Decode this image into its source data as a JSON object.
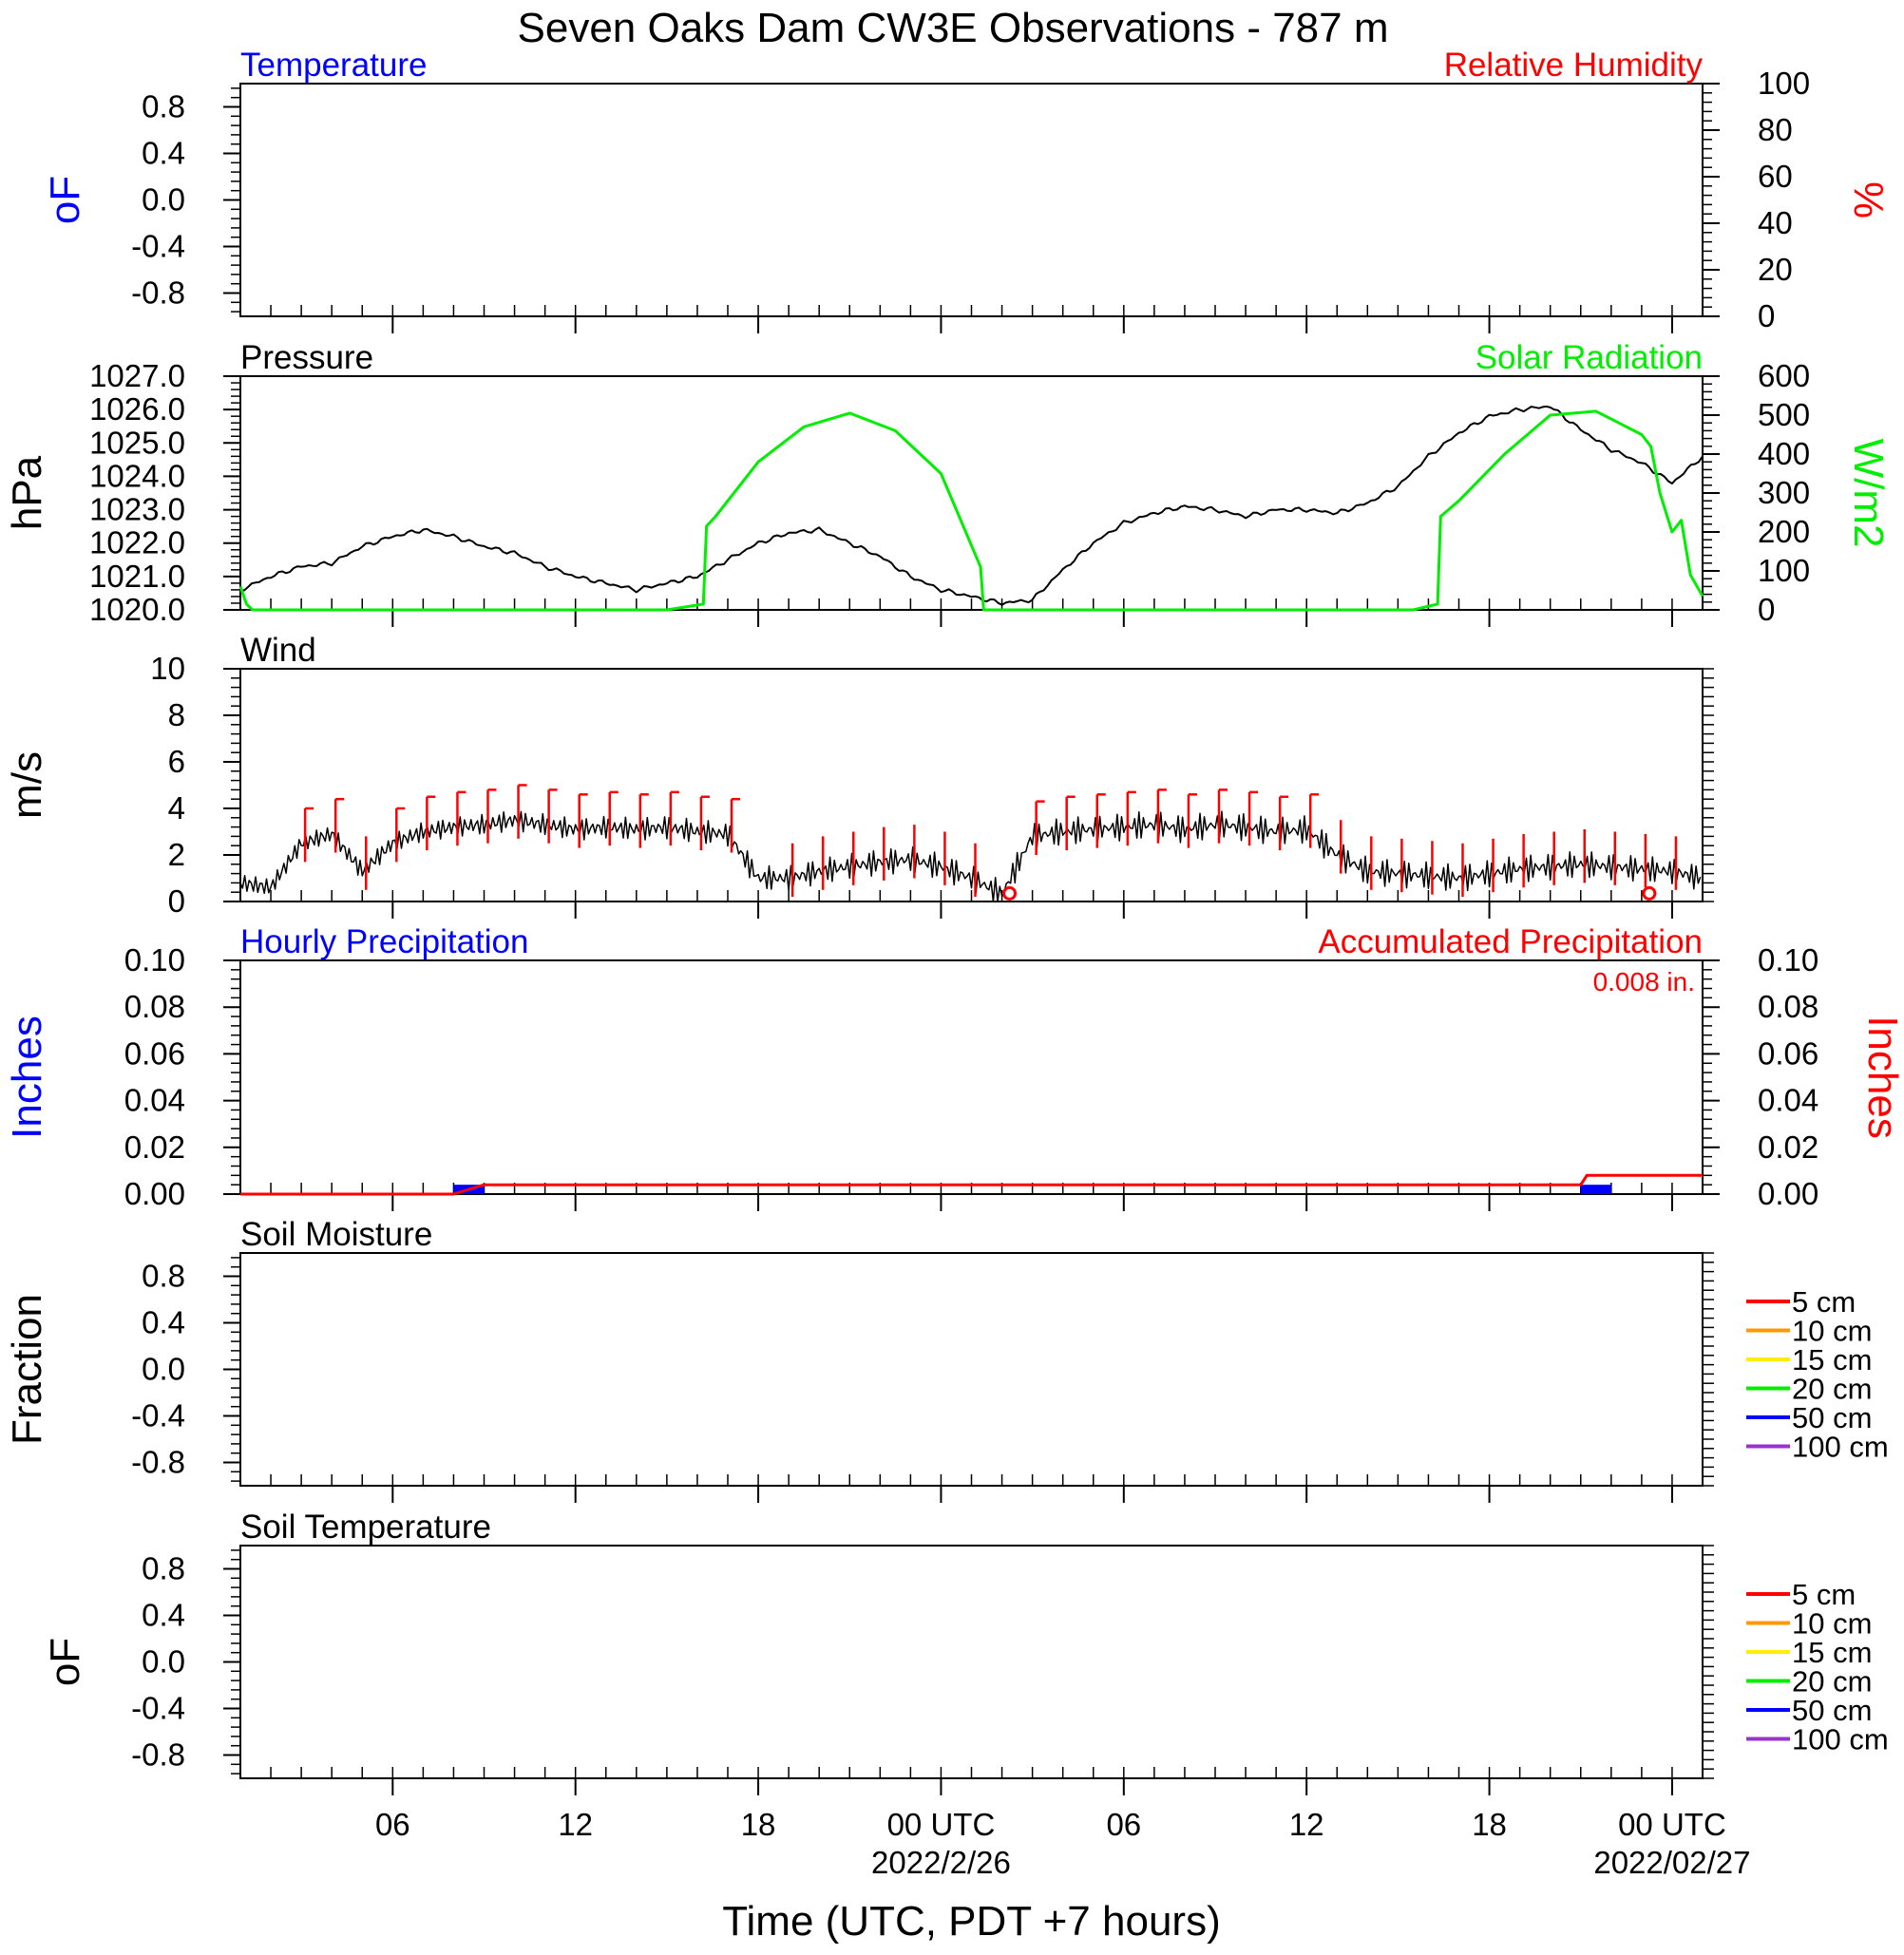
{
  "title": "Seven Oaks Dam CW3E Observations - 787 m",
  "colors": {
    "temperature": "#0000ff",
    "humidity": "#ff0000",
    "pressure": "#000000",
    "solar": "#00ee00",
    "wind_barb": "#ff0000",
    "hourly_precip": "#0000ff",
    "accum_precip": "#ff0000",
    "soil_5": "#ff0000",
    "soil_10": "#ff9900",
    "soil_15": "#ffee00",
    "soil_20": "#00ee00",
    "soil_50": "#0000ff",
    "soil_100": "#9933cc"
  },
  "chart_data": [
    {
      "type": "line",
      "panel": "temperature_humidity",
      "title_left": "Temperature",
      "title_right": "Relative Humidity",
      "ylabel_left": "oF",
      "ylabel_right": "%",
      "yticks_left": [
        "0.8",
        "0.4",
        "0.0",
        "-0.4",
        "-0.8"
      ],
      "ylim_left": [
        -1,
        1
      ],
      "yticks_right": [
        "100",
        "80",
        "60",
        "40",
        "20",
        "0"
      ],
      "ylim_right": [
        0,
        100
      ],
      "series": []
    },
    {
      "type": "line",
      "panel": "pressure_solar",
      "title_left": "Pressure",
      "title_right": "Solar Radiation",
      "ylabel_left": "hPa",
      "ylabel_right": "W/m2",
      "yticks_left": [
        "1027.0",
        "1026.0",
        "1025.0",
        "1024.0",
        "1023.0",
        "1022.0",
        "1021.0",
        "1020.0"
      ],
      "ylim_left": [
        1020,
        1027
      ],
      "yticks_right": [
        "600",
        "500",
        "400",
        "300",
        "200",
        "100",
        "0"
      ],
      "ylim_right": [
        0,
        600
      ],
      "x_hours": [
        0,
        1,
        2,
        3,
        4,
        5,
        6,
        7,
        8,
        9,
        10,
        11,
        12,
        13,
        14,
        15,
        16,
        17,
        18,
        19,
        20,
        21,
        22,
        23,
        24,
        25,
        26,
        27,
        28,
        29,
        30,
        31,
        32,
        33,
        34,
        35,
        36,
        37,
        38,
        39,
        40,
        41,
        42,
        43,
        44,
        45,
        46,
        47,
        48
      ],
      "pressure": [
        1020.6,
        1021.0,
        1021.3,
        1021.4,
        1021.9,
        1022.2,
        1022.4,
        1022.2,
        1021.9,
        1021.7,
        1021.3,
        1021.0,
        1020.8,
        1020.6,
        1020.8,
        1021.0,
        1021.5,
        1022.0,
        1022.3,
        1022.4,
        1022.0,
        1021.6,
        1021.0,
        1020.6,
        1020.4,
        1020.2,
        1020.3,
        1021.2,
        1022.0,
        1022.6,
        1022.9,
        1023.1,
        1023.0,
        1022.8,
        1023.0,
        1023.0,
        1022.9,
        1023.2,
        1023.7,
        1024.6,
        1025.3,
        1025.8,
        1026.0,
        1026.1,
        1025.4,
        1024.8,
        1024.4,
        1023.8,
        1024.6
      ],
      "solar_x": [
        0,
        0.2,
        0.4,
        14,
        15.2,
        15.3,
        15.6,
        17,
        18.5,
        20,
        21.5,
        23,
        24.3,
        24.4,
        38.5,
        39.3,
        39.4,
        40,
        41.5,
        43,
        44.5,
        45,
        46,
        46.3,
        46.6,
        47,
        47.3,
        47.6,
        48
      ],
      "solar": [
        60,
        15,
        0,
        0,
        15,
        215,
        240,
        380,
        470,
        505,
        460,
        350,
        110,
        0,
        0,
        15,
        240,
        280,
        400,
        500,
        510,
        490,
        450,
        420,
        300,
        200,
        230,
        90,
        35
      ],
      "series": [
        {
          "name": "Pressure"
        },
        {
          "name": "Solar Radiation"
        }
      ]
    },
    {
      "type": "line",
      "panel": "wind",
      "title_left": "Wind",
      "ylabel_left": "m/s",
      "yticks_left": [
        "10",
        "8",
        "6",
        "4",
        "2",
        "0"
      ],
      "ylim_left": [
        0,
        10
      ],
      "x_hours": [
        0,
        1,
        2,
        3,
        4,
        5,
        6,
        7,
        8,
        9,
        10,
        11,
        12,
        13,
        14,
        15,
        16,
        17,
        18,
        19,
        20,
        21,
        22,
        23,
        24,
        25,
        26,
        27,
        28,
        29,
        30,
        31,
        32,
        33,
        34,
        35,
        36,
        37,
        38,
        39,
        40,
        41,
        42,
        43,
        44,
        45,
        46,
        47,
        48
      ],
      "speed": [
        0.8,
        0.6,
        2.5,
        2.9,
        1.3,
        2.5,
        3.0,
        3.2,
        3.3,
        3.5,
        3.3,
        3.1,
        3.2,
        3.1,
        3.2,
        3.0,
        2.9,
        1.0,
        1.0,
        1.3,
        1.5,
        1.7,
        1.8,
        1.5,
        1.0,
        0.3,
        2.8,
        3.0,
        3.1,
        3.2,
        3.3,
        3.1,
        3.3,
        3.2,
        3.0,
        3.1,
        2.0,
        1.3,
        1.2,
        1.1,
        1.0,
        1.2,
        1.4,
        1.5,
        1.6,
        1.5,
        1.4,
        1.3,
        1.0
      ],
      "barb_hours": [
        2,
        3,
        4,
        5,
        6,
        7,
        8,
        9,
        10,
        11,
        12,
        13,
        14,
        15,
        16,
        18,
        19,
        20,
        21,
        22,
        23,
        24,
        26,
        27,
        28,
        29,
        30,
        31,
        32,
        33,
        34,
        35,
        36,
        37,
        38,
        39,
        40,
        41,
        42,
        43,
        44,
        45,
        46,
        47
      ],
      "calm_hours": [
        25,
        46
      ],
      "series": [
        {
          "name": "Wind"
        }
      ]
    },
    {
      "type": "bar",
      "panel": "precipitation",
      "title_left": "Hourly Precipitation",
      "title_right": "Accumulated Precipitation",
      "accum_total": "0.008 in.",
      "ylabel_left": "Inches",
      "ylabel_right": "Inches",
      "yticks_left": [
        "0.10",
        "0.08",
        "0.06",
        "0.04",
        "0.02",
        "0.00"
      ],
      "yticks_right": [
        "0.10",
        "0.08",
        "0.06",
        "0.04",
        "0.02",
        "0.00"
      ],
      "ylim_left": [
        0,
        0.1
      ],
      "ylim_right": [
        0,
        0.1
      ],
      "hourly": [
        {
          "x": 7,
          "value": 0.004
        },
        {
          "x": 44,
          "value": 0.004
        }
      ],
      "accumulated_x": [
        0,
        7,
        8,
        44,
        44.2,
        48
      ],
      "accumulated": [
        0,
        0,
        0.004,
        0.004,
        0.008,
        0.008
      ],
      "series": [
        {
          "name": "Hourly Precipitation"
        },
        {
          "name": "Accumulated Precipitation"
        }
      ]
    },
    {
      "type": "line",
      "panel": "soil_moisture",
      "title_left": "Soil Moisture",
      "ylabel_left": "Fraction",
      "yticks_left": [
        "0.8",
        "0.4",
        "0.0",
        "-0.4",
        "-0.8"
      ],
      "ylim_left": [
        -1,
        1
      ],
      "legend": [
        "5 cm",
        "10 cm",
        "15 cm",
        "20 cm",
        "50 cm",
        "100 cm"
      ],
      "series": []
    },
    {
      "type": "line",
      "panel": "soil_temperature",
      "title_left": "Soil Temperature",
      "ylabel_left": "oF",
      "yticks_left": [
        "0.8",
        "0.4",
        "0.0",
        "-0.4",
        "-0.8"
      ],
      "ylim_left": [
        -1,
        1
      ],
      "legend": [
        "5 cm",
        "10 cm",
        "15 cm",
        "20 cm",
        "50 cm",
        "100 cm"
      ],
      "series": []
    }
  ],
  "x_axis": {
    "xlim_hours": [
      0,
      48
    ],
    "major_ticks": [
      {
        "hour": 5,
        "label": "06"
      },
      {
        "hour": 11,
        "label": "12"
      },
      {
        "hour": 17,
        "label": "18"
      },
      {
        "hour": 23,
        "label": "00 UTC"
      },
      {
        "hour": 29,
        "label": "06"
      },
      {
        "hour": 35,
        "label": "12"
      },
      {
        "hour": 41,
        "label": "18"
      },
      {
        "hour": 47,
        "label": "00 UTC"
      }
    ],
    "date_labels": [
      {
        "hour": 23,
        "label": "2022/2/26"
      },
      {
        "hour": 47,
        "label": "2022/02/27"
      }
    ],
    "xlabel": "Time (UTC, PDT +7 hours)"
  }
}
